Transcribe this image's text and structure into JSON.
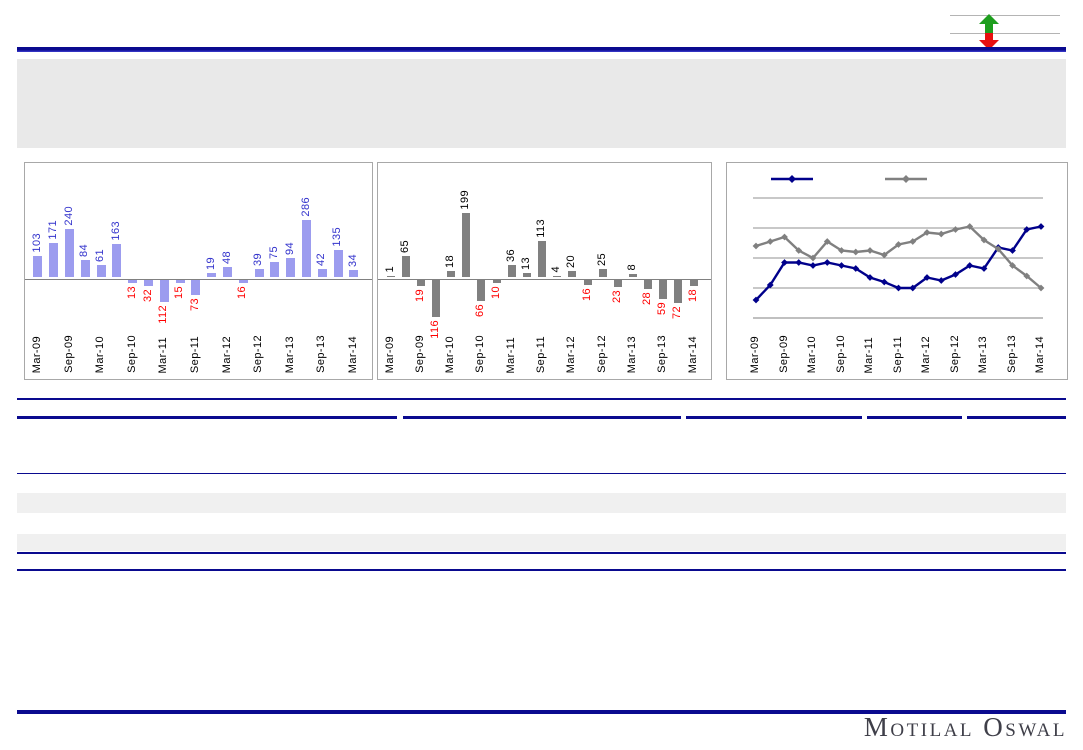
{
  "header": {
    "title": "",
    "box_color": "#E9E9E9"
  },
  "indicator": {
    "up_icon": "up-arrow-icon",
    "down_icon": "down-arrow-icon",
    "up_color": "#1E9E1E",
    "down_color": "#E81010"
  },
  "chart_data": [
    {
      "type": "bar",
      "name": "chart-1",
      "title": "",
      "xlabel": "",
      "ylabel": "",
      "categories": [
        "Mar-09",
        "Jun-09",
        "Sep-09",
        "Dec-09",
        "Mar-10",
        "Jun-10",
        "Sep-10",
        "Dec-10",
        "Mar-11",
        "Jun-11",
        "Sep-11",
        "Dec-11",
        "Mar-12",
        "Jun-12",
        "Sep-12",
        "Dec-12",
        "Mar-13",
        "Jun-13",
        "Sep-13",
        "Dec-13",
        "Mar-14"
      ],
      "x_tick_labels": [
        "Mar-09",
        "Sep-09",
        "Mar-10",
        "Sep-10",
        "Mar-11",
        "Sep-11",
        "Mar-12",
        "Sep-12",
        "Mar-13",
        "Sep-13",
        "Mar-14"
      ],
      "values": [
        103,
        171,
        240,
        84,
        61,
        163,
        -13,
        -32,
        -112,
        -15,
        -73,
        19,
        48,
        -16,
        39,
        75,
        94,
        286,
        42,
        135,
        34
      ],
      "bar_color": "#9C9CEF",
      "positive_label_color": "#3333CC",
      "negative_label_color": "#FF0000",
      "grid": "off",
      "y_axis_labels_visible": false
    },
    {
      "type": "bar",
      "name": "chart-2",
      "title": "",
      "xlabel": "",
      "ylabel": "",
      "categories": [
        "Mar-09",
        "Jun-09",
        "Sep-09",
        "Dec-09",
        "Mar-10",
        "Jun-10",
        "Sep-10",
        "Dec-10",
        "Mar-11",
        "Jun-11",
        "Sep-11",
        "Dec-11",
        "Mar-12",
        "Jun-12",
        "Sep-12",
        "Dec-12",
        "Mar-13",
        "Jun-13",
        "Sep-13",
        "Dec-13",
        "Mar-14"
      ],
      "x_tick_labels": [
        "Mar-09",
        "Sep-09",
        "Mar-10",
        "Sep-10",
        "Mar-11",
        "Sep-11",
        "Mar-12",
        "Sep-12",
        "Mar-13",
        "Sep-13",
        "Mar-14"
      ],
      "values": [
        1,
        65,
        -19,
        -116,
        18,
        199,
        -66,
        -10,
        36,
        13,
        113,
        4,
        20,
        -16,
        25,
        -23,
        8,
        -28,
        -59,
        -72,
        -18
      ],
      "bar_color": "#808080",
      "positive_label_color": "#000000",
      "negative_label_color": "#FF0000",
      "grid": "off",
      "y_axis_labels_visible": false
    },
    {
      "type": "line",
      "name": "chart-3",
      "title": "",
      "xlabel": "",
      "ylabel": "",
      "categories": [
        "Mar-09",
        "Jun-09",
        "Sep-09",
        "Dec-09",
        "Mar-10",
        "Jun-10",
        "Sep-10",
        "Dec-10",
        "Mar-11",
        "Jun-11",
        "Sep-11",
        "Dec-11",
        "Mar-12",
        "Jun-12",
        "Sep-12",
        "Dec-12",
        "Mar-13",
        "Jun-13",
        "Sep-13",
        "Dec-13",
        "Mar-14"
      ],
      "x_tick_labels": [
        "Mar-09",
        "Sep-09",
        "Mar-10",
        "Sep-10",
        "Mar-11",
        "Sep-11",
        "Mar-12",
        "Sep-12",
        "Mar-13",
        "Sep-13",
        "Mar-14"
      ],
      "series": [
        {
          "name": "",
          "color": "#00008B",
          "values": [
            1.2,
            2.2,
            3.7,
            3.7,
            3.5,
            3.7,
            3.5,
            3.3,
            2.7,
            2.4,
            2.0,
            2.0,
            2.7,
            2.5,
            2.9,
            3.5,
            3.3,
            4.7,
            4.5,
            5.9,
            6.1
          ]
        },
        {
          "name": "",
          "color": "#808080",
          "values": [
            4.8,
            5.1,
            5.4,
            4.5,
            4.0,
            5.1,
            4.5,
            4.4,
            4.5,
            4.2,
            4.9,
            5.1,
            5.7,
            5.6,
            5.9,
            6.1,
            5.2,
            4.6,
            3.5,
            2.8,
            2.0
          ]
        }
      ],
      "ylim": [
        0,
        10
      ],
      "gridline_step": 2,
      "grid": "horizontal",
      "legend_position": "top",
      "legend_labels_visible": false,
      "marker": "diamond",
      "y_axis_labels_visible": false
    }
  ],
  "footer": {
    "brand": "Motilal Oswal"
  }
}
